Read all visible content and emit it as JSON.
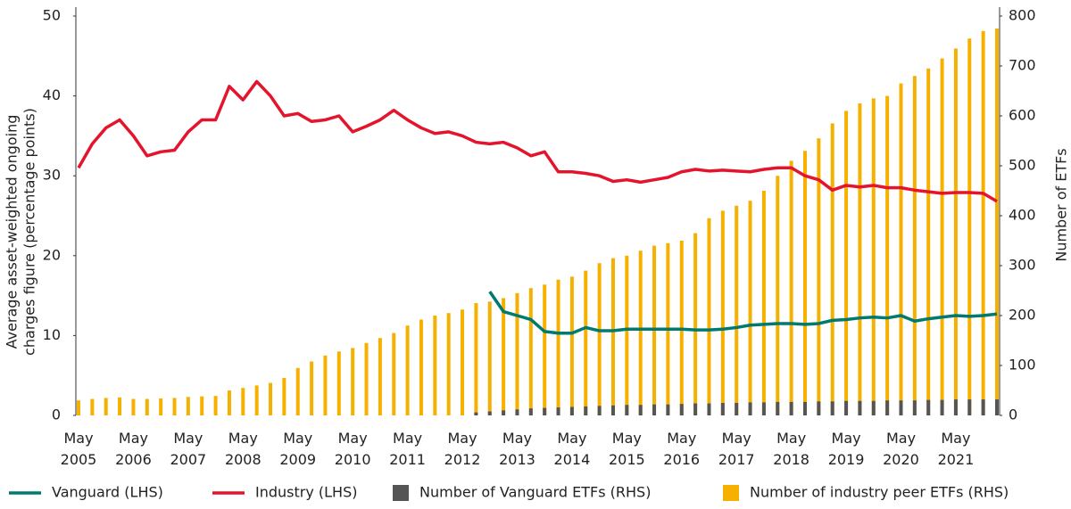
{
  "chart_data": {
    "type": "combo",
    "categories": [
      "May 2005",
      null,
      null,
      null,
      "May 2006",
      null,
      null,
      null,
      "May 2007",
      null,
      null,
      null,
      "May 2008",
      null,
      null,
      null,
      "May 2009",
      null,
      null,
      null,
      "May 2010",
      null,
      null,
      null,
      "May 2011",
      null,
      null,
      null,
      "May 2012",
      null,
      null,
      null,
      "May 2013",
      null,
      null,
      null,
      "May 2014",
      null,
      null,
      null,
      "May 2015",
      null,
      null,
      null,
      "May 2016",
      null,
      null,
      null,
      "May 2017",
      null,
      null,
      null,
      "May 2018",
      null,
      null,
      null,
      "May 2019",
      null,
      null,
      null,
      "May 2020",
      null,
      null,
      null,
      "May 2021",
      null,
      null,
      null
    ],
    "ylabel": [
      "Average asset-weighted ongoing",
      "charges figure (percentage points)"
    ],
    "y2label": "Number of ETFs",
    "ylim": [
      0,
      50
    ],
    "yticks": [
      0,
      10,
      20,
      30,
      40,
      50
    ],
    "y2lim": [
      0,
      800
    ],
    "y2ticks": [
      0,
      100,
      200,
      300,
      400,
      500,
      600,
      700,
      800
    ],
    "series": [
      {
        "name": "Vanguard (LHS)",
        "type": "line",
        "color": "#007a6e",
        "values": [
          null,
          null,
          null,
          null,
          null,
          null,
          null,
          null,
          null,
          null,
          null,
          null,
          null,
          null,
          null,
          null,
          null,
          null,
          null,
          null,
          null,
          null,
          null,
          null,
          null,
          null,
          null,
          null,
          null,
          null,
          15.5,
          13,
          12.5,
          12,
          10.5,
          10.3,
          10.3,
          11,
          10.6,
          10.6,
          10.8,
          10.8,
          10.8,
          10.8,
          10.8,
          10.7,
          10.7,
          10.8,
          11,
          11.3,
          11.4,
          11.5,
          11.5,
          11.4,
          11.5,
          11.9,
          12,
          12.2,
          12.3,
          12.2,
          12.5,
          11.8,
          12.1,
          12.3,
          12.5,
          12.4,
          12.5,
          12.7
        ]
      },
      {
        "name": "Industry (LHS)",
        "type": "line",
        "color": "#e4142c",
        "values": [
          31,
          34,
          36,
          37,
          35,
          32.5,
          33,
          33.2,
          35.5,
          37,
          37,
          41.2,
          39.5,
          41.8,
          40,
          37.5,
          37.8,
          36.8,
          37,
          37.5,
          35.5,
          36.2,
          37,
          38.2,
          37,
          36,
          35.3,
          35.5,
          35,
          34.2,
          34,
          34.2,
          33.5,
          32.5,
          33,
          30.5,
          30.5,
          30.3,
          30,
          29.3,
          29.5,
          29.2,
          29.5,
          29.8,
          30.5,
          30.8,
          30.6,
          30.7,
          30.6,
          30.5,
          30.8,
          31,
          31,
          30,
          29.5,
          28.2,
          28.8,
          28.6,
          28.8,
          28.5,
          28.5,
          28.2,
          28,
          27.8,
          27.9,
          27.9,
          27.8,
          26.8
        ]
      },
      {
        "name": "Number of Vanguard ETFs (RHS)",
        "type": "bar",
        "axis": "y2",
        "color": "#555555",
        "values": [
          0,
          0,
          0,
          0,
          0,
          0,
          0,
          0,
          0,
          0,
          0,
          0,
          0,
          0,
          0,
          0,
          0,
          0,
          0,
          0,
          0,
          0,
          0,
          0,
          0,
          0,
          0,
          0,
          0,
          6,
          8,
          10,
          12,
          14,
          15,
          16,
          17,
          18,
          19,
          20,
          21,
          21,
          22,
          22,
          23,
          24,
          24,
          25,
          25,
          26,
          26,
          27,
          27,
          27,
          28,
          28,
          29,
          29,
          29,
          30,
          30,
          30,
          31,
          31,
          32,
          32,
          32,
          32
        ]
      },
      {
        "name": "Number of industry peer ETFs (RHS)",
        "type": "bar",
        "axis": "y2",
        "color": "#f6b100",
        "values": [
          30,
          33,
          35,
          36,
          33,
          33,
          34,
          35,
          37,
          38,
          39,
          50,
          55,
          60,
          65,
          75,
          95,
          108,
          120,
          128,
          135,
          145,
          155,
          165,
          180,
          192,
          200,
          205,
          212,
          225,
          228,
          235,
          245,
          255,
          262,
          272,
          278,
          290,
          305,
          315,
          320,
          330,
          340,
          345,
          350,
          365,
          395,
          410,
          420,
          430,
          450,
          480,
          510,
          530,
          555,
          585,
          610,
          625,
          635,
          640,
          665,
          680,
          695,
          715,
          735,
          755,
          770,
          775
        ]
      }
    ]
  }
}
